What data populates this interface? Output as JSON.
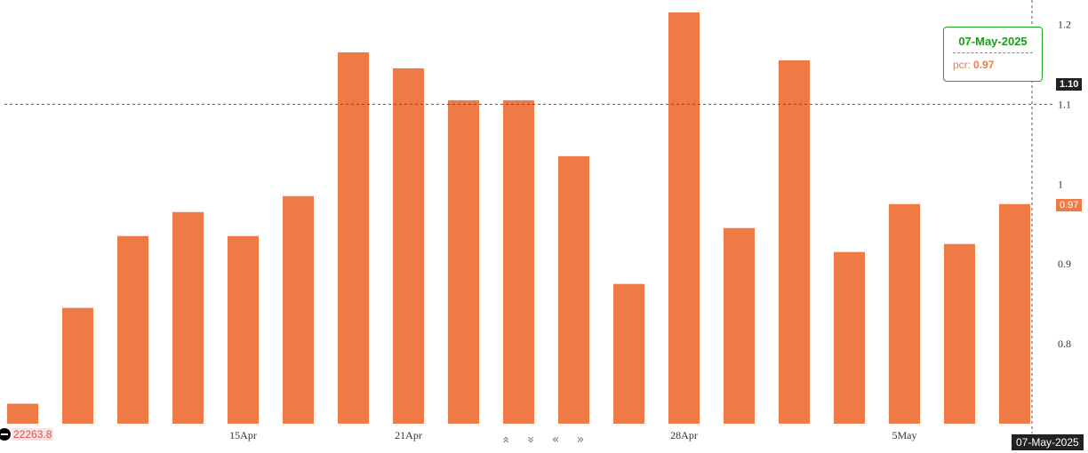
{
  "chart_data": {
    "type": "bar",
    "series": [
      {
        "key": "pcr",
        "color": "#ee7b46",
        "values": [
          0.725,
          0.845,
          0.935,
          0.965,
          0.935,
          0.985,
          1.165,
          1.145,
          1.105,
          1.105,
          1.035,
          0.875,
          1.215,
          0.945,
          1.155,
          0.915,
          0.975,
          0.925,
          0.975
        ]
      }
    ],
    "x_tick_labels": [
      {
        "index": 4,
        "label": "15Apr"
      },
      {
        "index": 7,
        "label": "21Apr"
      },
      {
        "index": 12,
        "label": "28Apr"
      },
      {
        "index": 16,
        "label": "5May"
      }
    ],
    "y_axis": {
      "position": "right",
      "ticks": [
        "0.8",
        "0.9",
        "1",
        "1.1",
        "1.2"
      ]
    },
    "ylim": [
      0.7,
      1.225
    ],
    "grid": false,
    "crosshair": {
      "y_value": 1.1,
      "y_label": "1.10",
      "x_label": "07-May-2025"
    },
    "last_value_label": "0.97",
    "low_marker_label": "22263.8"
  },
  "tooltip": {
    "date": "07-May-2025",
    "series_label": "pcr:",
    "value": "0.97"
  },
  "nav": {
    "up": "«",
    "down": "»",
    "left": "«",
    "right": "»"
  }
}
